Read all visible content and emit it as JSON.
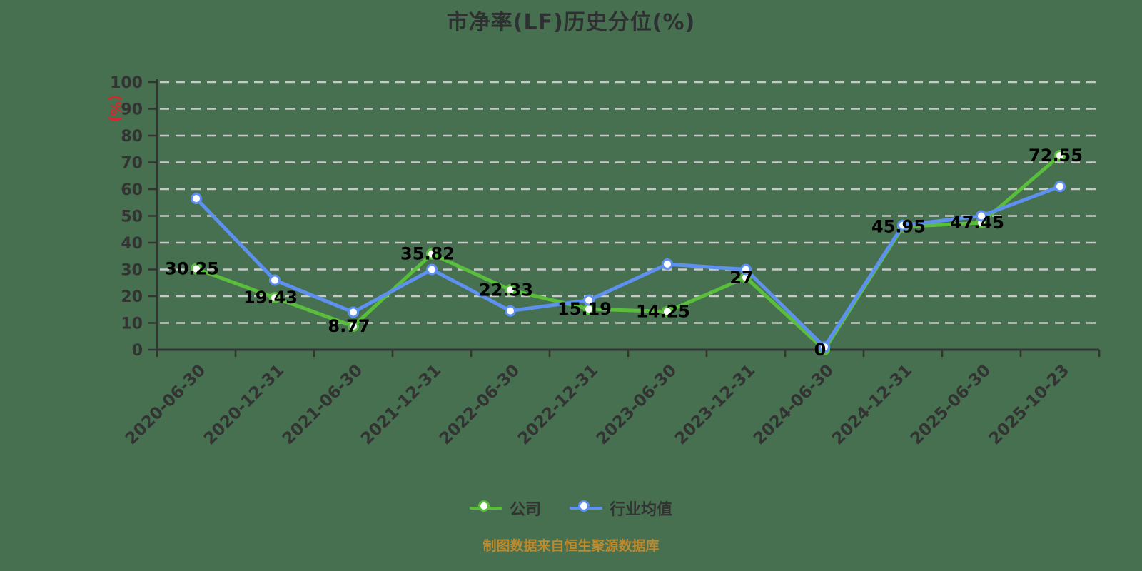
{
  "page": {
    "source_note": "制图数据来自恒生聚源数据库"
  },
  "colors": {
    "background": "#477050",
    "company_line": "#5abe3c",
    "industry_line": "#5e90f0",
    "grid_line": "#c9c9c9",
    "axis_line": "#333333",
    "tick_text": "#333333",
    "value_label_text": "#000000",
    "y_unit_label": "#d9252b",
    "source_note_text": "#bd8a2e",
    "marker_fill": "#ffffff"
  },
  "chart_data": {
    "type": "line",
    "title": "市净率(LF)历史分位(%)",
    "categories": [
      "2020-06-30",
      "2020-12-31",
      "2021-06-30",
      "2021-12-31",
      "2022-06-30",
      "2022-12-31",
      "2023-06-30",
      "2023-12-31",
      "2024-06-30",
      "2024-12-31",
      "2025-06-30",
      "2025-10-23"
    ],
    "series": [
      {
        "name": "公司",
        "color": "#5abe3c",
        "values": [
          30.25,
          19.43,
          8.77,
          35.82,
          22.33,
          15.19,
          14.25,
          27,
          0,
          45.95,
          47.45,
          72.55
        ],
        "point_labels": [
          "30.25",
          "19.43",
          "8.77",
          "35.82",
          "22.33",
          "15.19",
          "14.25",
          "27",
          "0",
          "45.95",
          "47.45",
          "72.55"
        ]
      },
      {
        "name": "行业均值",
        "color": "#5e90f0",
        "values": [
          56.5,
          26,
          14,
          30,
          14.5,
          18.5,
          32,
          30,
          1,
          46.5,
          50,
          61
        ],
        "point_labels": []
      }
    ],
    "xlabel": "",
    "ylabel": "(%)",
    "ylim": [
      0,
      100
    ],
    "y_ticks": [
      0,
      10,
      20,
      30,
      40,
      50,
      60,
      70,
      80,
      90,
      100
    ],
    "grid": "horizontal-dashed",
    "legend_position": "bottom",
    "x_tick_label_rotation_deg": 45
  }
}
